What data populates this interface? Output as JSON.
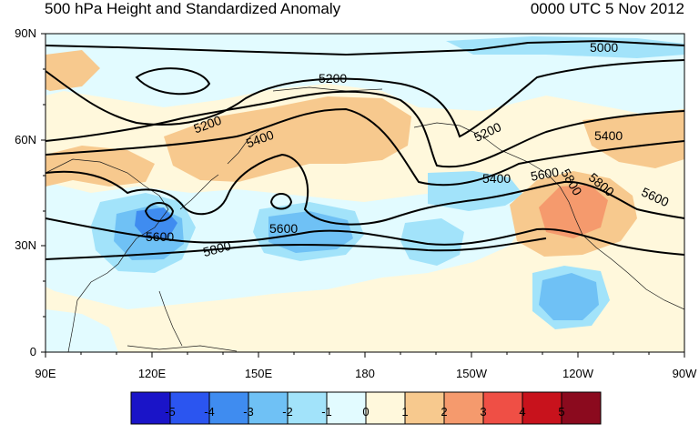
{
  "title_left": "500 hPa Height and Standardized Anomaly",
  "title_right": "0000 UTC 5 Nov 2012",
  "lat_labels": [
    "90N",
    "60N",
    "30N",
    "0"
  ],
  "lon_labels": [
    "90E",
    "120E",
    "150E",
    "180",
    "150W",
    "120W",
    "90W"
  ],
  "colorbar": {
    "labels": [
      "-5",
      "-4",
      "-3",
      "-2",
      "-1",
      "0",
      "1",
      "2",
      "3",
      "4",
      "5"
    ],
    "colors": [
      "#1a14c8",
      "#2b55f0",
      "#3f8cf0",
      "#6fc1f5",
      "#a2e3fa",
      "#e2fbff",
      "#fff8dc",
      "#f7c98e",
      "#f59a6d",
      "#ef4f45",
      "#c8121c",
      "#8b0a1e"
    ]
  },
  "contour_labels": [
    "5000",
    "5200",
    "5200",
    "5200",
    "5400",
    "5400",
    "5400",
    "5600",
    "5600",
    "5600",
    "5600",
    "5800",
    "5800",
    "5800"
  ],
  "colors": {
    "background": "#fff8dc",
    "contour": "#000000",
    "coast": "#1a1a1a"
  }
}
